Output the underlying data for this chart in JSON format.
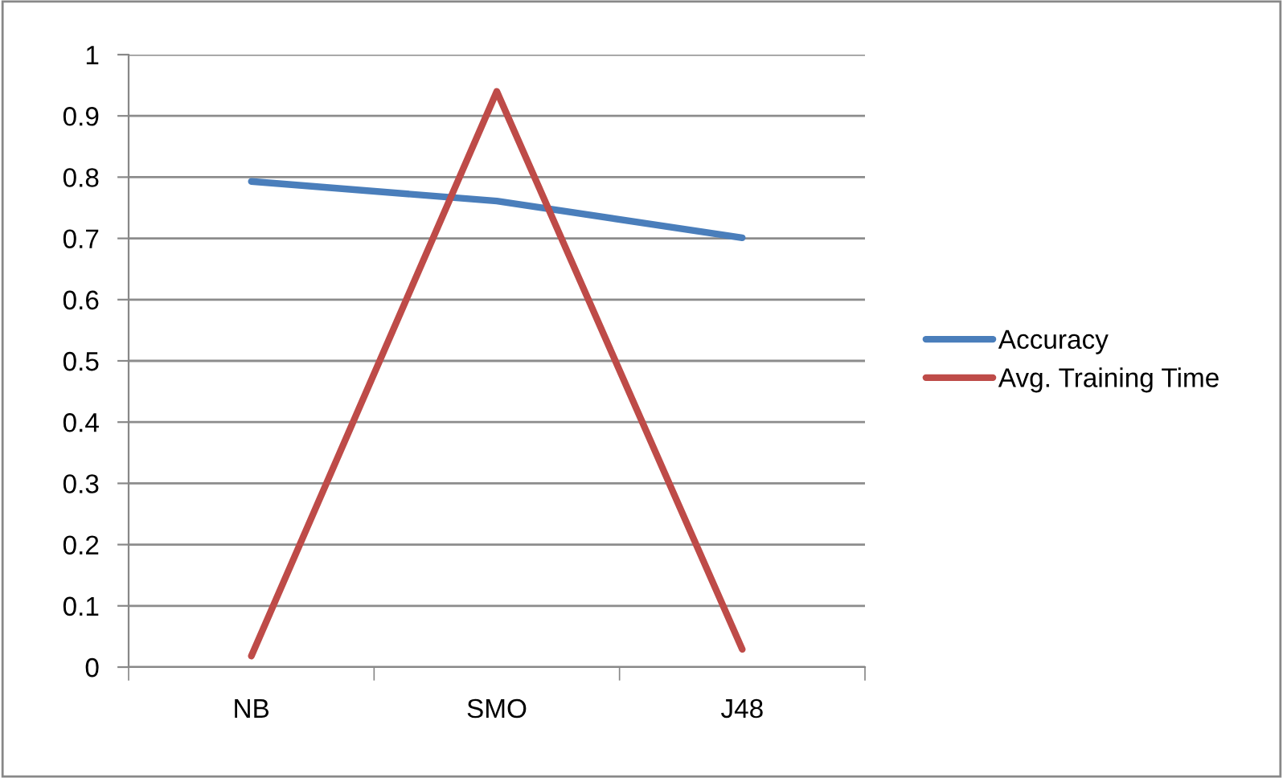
{
  "chart_data": {
    "type": "line",
    "categories": [
      "NB",
      "SMO",
      "J48"
    ],
    "series": [
      {
        "name": "Accuracy",
        "color": "#4a7ebb",
        "values": [
          0.793,
          0.761,
          0.701
        ]
      },
      {
        "name": "Avg. Training Time",
        "color": "#be4b48",
        "values": [
          0.018,
          0.94,
          0.029
        ]
      }
    ],
    "ylim": [
      0,
      1
    ],
    "yticks": [
      0,
      {
        "value": 0.1,
        "label": "0.1"
      },
      {
        "value": 0.2,
        "label": "0.2"
      },
      {
        "value": 0.3,
        "label": "0.3"
      },
      {
        "value": 0.4,
        "label": "0.4"
      },
      {
        "value": 0.5,
        "label": "0.5"
      },
      {
        "value": 0.6,
        "label": "0.6"
      },
      {
        "value": 0.7,
        "label": "0.7"
      },
      {
        "value": 0.8,
        "label": "0.8"
      },
      {
        "value": 0.9,
        "label": "0.9"
      },
      1
    ],
    "grid": "y",
    "legend": "right",
    "marker": "none",
    "line_style": "solid"
  }
}
